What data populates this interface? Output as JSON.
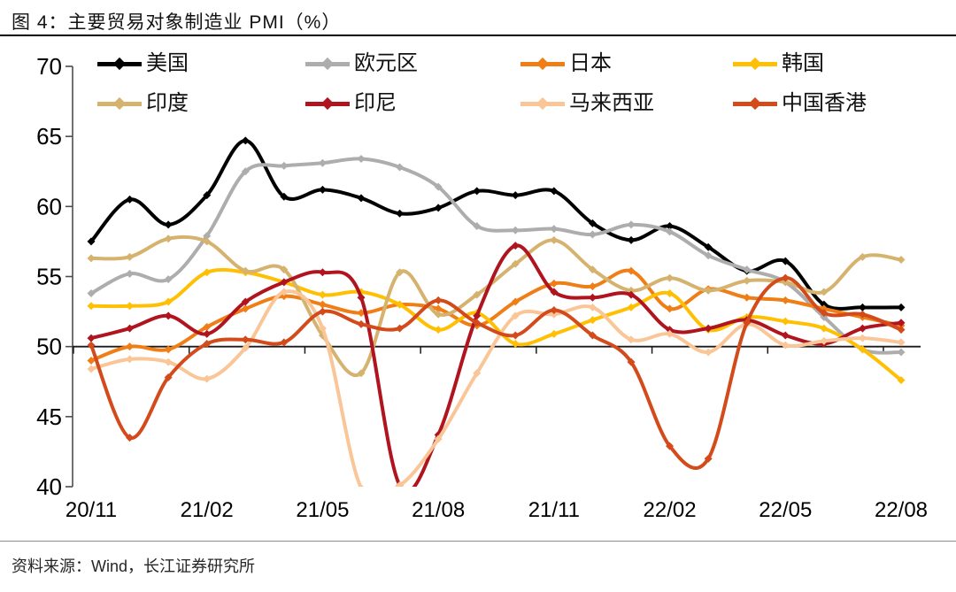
{
  "figure": {
    "title": "图 4：主要贸易对象制造业 PMI（%）",
    "source": "资料来源：Wind，长江证券研究所"
  },
  "chart_data": {
    "type": "line",
    "title": "主要贸易对象制造业 PMI（%）",
    "x": [
      "2020-11",
      "2020-12",
      "2021-01",
      "2021-02",
      "2021-03",
      "2021-04",
      "2021-05",
      "2021-06",
      "2021-07",
      "2021-08",
      "2021-09",
      "2021-10",
      "2021-11",
      "2021-12",
      "2022-01",
      "2022-02",
      "2022-03",
      "2022-04",
      "2022-05",
      "2022-06",
      "2022-07",
      "2022-08"
    ],
    "x_tick_labels": [
      "20/11",
      "21/02",
      "21/05",
      "21/08",
      "21/11",
      "22/02",
      "22/05",
      "22/08"
    ],
    "y_tick_labels": [
      "40",
      "45",
      "50",
      "55",
      "60",
      "65",
      "70"
    ],
    "ylim": [
      40,
      70
    ],
    "baseline": 50,
    "grid": false,
    "legend_position": "top",
    "marker": "diamond",
    "series": [
      {
        "name": "美国",
        "color": "#000000",
        "values": [
          57.5,
          60.5,
          58.7,
          60.8,
          64.7,
          60.7,
          61.2,
          60.6,
          59.5,
          59.9,
          61.1,
          60.8,
          61.1,
          58.8,
          57.6,
          58.6,
          57.1,
          55.4,
          56.1,
          53.0,
          52.8,
          52.8
        ]
      },
      {
        "name": "欧元区",
        "color": "#ADADAD",
        "values": [
          53.8,
          55.2,
          54.8,
          57.9,
          62.5,
          62.9,
          63.1,
          63.4,
          62.8,
          61.4,
          58.6,
          58.3,
          58.4,
          58.0,
          58.7,
          58.2,
          56.5,
          55.5,
          54.6,
          52.1,
          49.8,
          49.6
        ]
      },
      {
        "name": "日本",
        "color": "#F07E16",
        "values": [
          49.0,
          50.0,
          49.8,
          51.4,
          52.7,
          53.6,
          53.0,
          52.4,
          53.0,
          52.7,
          51.5,
          53.2,
          54.5,
          54.3,
          55.4,
          52.7,
          54.1,
          53.5,
          53.3,
          52.7,
          52.1,
          51.5
        ]
      },
      {
        "name": "韩国",
        "color": "#FFC003",
        "values": [
          52.9,
          52.9,
          53.2,
          55.3,
          55.3,
          54.6,
          53.7,
          53.9,
          53.0,
          51.2,
          52.4,
          50.2,
          50.9,
          51.9,
          52.8,
          53.8,
          51.2,
          52.1,
          51.8,
          51.3,
          49.8,
          47.6
        ]
      },
      {
        "name": "印度",
        "color": "#D5B36E",
        "values": [
          56.3,
          56.4,
          57.7,
          57.5,
          55.4,
          55.5,
          50.8,
          48.1,
          55.3,
          52.3,
          53.7,
          55.9,
          57.6,
          55.5,
          54.0,
          54.9,
          54.0,
          54.7,
          54.6,
          53.9,
          56.4,
          56.2
        ]
      },
      {
        "name": "印尼",
        "color": "#B0141F",
        "values": [
          50.6,
          51.3,
          52.2,
          50.9,
          53.2,
          54.6,
          55.3,
          53.5,
          40.1,
          43.7,
          52.2,
          57.2,
          53.9,
          53.5,
          53.7,
          51.2,
          51.3,
          51.9,
          50.8,
          50.2,
          51.3,
          51.7
        ]
      },
      {
        "name": "马来西亚",
        "color": "#FAC697",
        "values": [
          48.4,
          49.1,
          48.9,
          47.7,
          49.9,
          53.9,
          51.3,
          39.9,
          40.1,
          43.4,
          48.1,
          52.2,
          52.3,
          52.8,
          50.5,
          50.9,
          49.6,
          51.6,
          50.1,
          50.4,
          50.6,
          50.3
        ]
      },
      {
        "name": "中国香港",
        "color": "#D34A1B",
        "values": [
          50.1,
          43.5,
          47.8,
          50.2,
          50.5,
          50.3,
          52.5,
          51.6,
          51.3,
          53.3,
          51.7,
          50.8,
          52.6,
          50.8,
          48.9,
          42.9,
          42.0,
          51.7,
          54.9,
          52.4,
          52.3,
          51.2
        ]
      }
    ]
  }
}
